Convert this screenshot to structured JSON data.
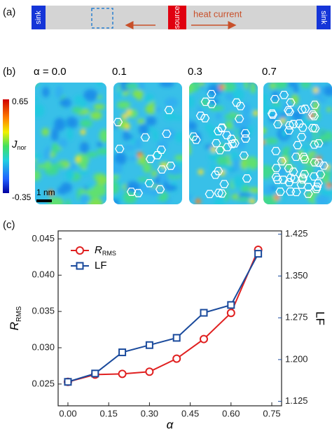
{
  "panel_labels": [
    "(a)",
    "(b)",
    "(c)"
  ],
  "diagram": {
    "left_sink": "sink",
    "source": "source",
    "heat_current": "heat current",
    "right_sink": "sink"
  },
  "maps": {
    "alpha_labels": [
      "α = 0.0",
      "0.1",
      "0.3",
      "0.7"
    ],
    "colorbar_max": "0.65",
    "colorbar_min": "-0.35",
    "colorbar_label": "J",
    "colorbar_label_subscript": "nor",
    "scale_bar": "1 nm"
  },
  "chart_data": {
    "type": "line",
    "xlabel": "α",
    "ylabel": "R",
    "ylabel_subscript": "RMS",
    "y2label": "LF",
    "x": [
      0,
      0.1,
      0.2,
      0.3,
      0.4,
      0.5,
      0.6,
      0.7
    ],
    "series": [
      {
        "name": "R",
        "name_subscript": "RMS",
        "color": "#e02020",
        "marker": "circle",
        "values": [
          0.0253,
          0.0263,
          0.0264,
          0.0267,
          0.0285,
          0.0312,
          0.0348,
          0.0435
        ]
      },
      {
        "name": "LF",
        "color": "#1a4a9c",
        "marker": "square",
        "axis": "y2",
        "values": [
          1.16,
          1.175,
          1.213,
          1.226,
          1.239,
          1.284,
          1.298,
          1.39
        ]
      }
    ],
    "xlim": [
      -0.036,
      0.786
    ],
    "xticks": [
      {
        "value": 0,
        "label": "0.00"
      },
      0.15,
      {
        "value": 0.3,
        "label": "0.30"
      },
      0.45,
      {
        "value": 0.6,
        "label": "0.60"
      },
      0.75
    ],
    "ylim": [
      0.022,
      0.0461
    ],
    "yticks": [
      0.025,
      {
        "value": 0.03,
        "label": "0.030"
      },
      0.035,
      {
        "value": 0.04,
        "label": "0.040"
      },
      0.045
    ],
    "y2lim": [
      1.117,
      1.431
    ],
    "y2ticks": [
      1.125,
      {
        "value": 1.2,
        "label": "1.200"
      },
      1.275,
      {
        "value": 1.35,
        "label": "1.350"
      },
      1.425
    ],
    "legend": "upper left"
  }
}
